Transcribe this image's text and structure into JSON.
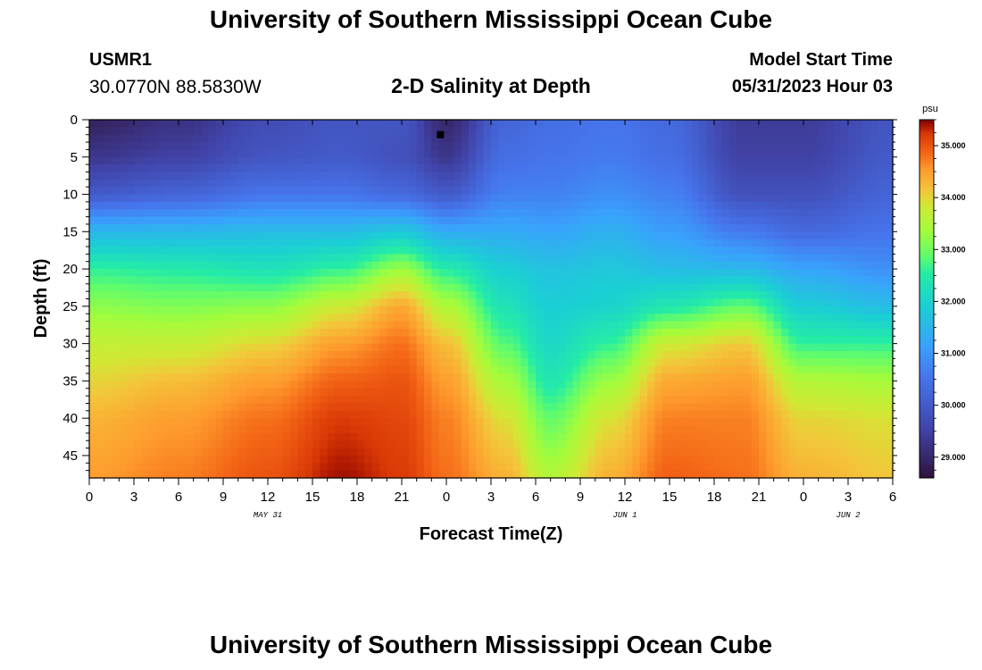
{
  "header": {
    "title": "University of Southern Mississippi Ocean Cube",
    "station": "USMR1",
    "coords": "30.0770N  88.5830W",
    "subtitle": "2-D Salinity at Depth",
    "start_label": "Model Start Time",
    "start_value": "05/31/2023 Hour 03"
  },
  "footer": {
    "title": "University of Southern Mississippi Ocean Cube"
  },
  "chart_data": {
    "type": "heatmap",
    "title": "2-D Salinity at Depth",
    "xlabel": "Forecast Time(Z)",
    "ylabel": "Depth (ft)",
    "x_ticks": [
      "0",
      "3",
      "6",
      "9",
      "12",
      "15",
      "18",
      "21",
      "0",
      "3",
      "6",
      "9",
      "12",
      "15",
      "18",
      "21",
      "0",
      "3",
      "6"
    ],
    "x_range_hours": [
      0,
      54
    ],
    "date_labels": [
      {
        "label": "MAY 31",
        "hour": 12
      },
      {
        "label": "JUN 1",
        "hour": 36
      },
      {
        "label": "JUN 2",
        "hour": 51
      }
    ],
    "y_ticks": [
      "0",
      "5",
      "10",
      "15",
      "20",
      "25",
      "30",
      "35",
      "40",
      "45"
    ],
    "y_range_ft": [
      0,
      48
    ],
    "marker": {
      "hour": 23.6,
      "depth": 2
    },
    "colorbar": {
      "unit": "psu",
      "range": [
        28.6,
        35.5
      ],
      "tick_labels": [
        "35.000",
        "34.000",
        "33.000",
        "32.000",
        "31.000",
        "30.000",
        "29.000"
      ],
      "tick_values": [
        35,
        34,
        33,
        32,
        31,
        30,
        29
      ]
    },
    "field_profiles": [
      {
        "hour": 0,
        "depths": [
          0,
          5,
          10,
          15,
          20,
          25,
          30,
          35,
          40,
          47.5
        ],
        "values": [
          28.9,
          29.3,
          30.0,
          31.5,
          32.6,
          33.2,
          33.7,
          34.0,
          34.3,
          34.5
        ]
      },
      {
        "hour": 6,
        "depths": [
          0,
          5,
          10,
          15,
          20,
          25,
          30,
          35,
          40,
          47.5
        ],
        "values": [
          29.2,
          29.5,
          30.2,
          31.5,
          32.5,
          33.1,
          33.7,
          34.2,
          34.5,
          34.7
        ]
      },
      {
        "hour": 12,
        "depths": [
          0,
          5,
          10,
          15,
          20,
          25,
          30,
          35,
          40,
          47.5
        ],
        "values": [
          29.7,
          29.9,
          30.5,
          31.6,
          32.3,
          33.2,
          34.0,
          34.5,
          34.8,
          35.0
        ]
      },
      {
        "hour": 17,
        "depths": [
          0,
          5,
          10,
          15,
          20,
          25,
          30,
          35,
          40,
          47.5
        ],
        "values": [
          29.9,
          30.0,
          30.5,
          31.6,
          32.6,
          33.8,
          34.5,
          34.9,
          35.2,
          35.4
        ]
      },
      {
        "hour": 21,
        "depths": [
          0,
          5,
          10,
          15,
          20,
          25,
          30,
          35,
          40,
          47.5
        ],
        "values": [
          29.9,
          29.8,
          30.3,
          31.8,
          33.3,
          34.4,
          34.8,
          35.0,
          35.1,
          35.2
        ]
      },
      {
        "hour": 24,
        "depths": [
          0,
          5,
          10,
          15,
          20,
          25,
          30,
          35,
          40,
          47.5
        ],
        "values": [
          29.0,
          29.3,
          30.0,
          31.3,
          32.5,
          33.5,
          34.2,
          34.5,
          34.7,
          34.8
        ]
      },
      {
        "hour": 28,
        "depths": [
          0,
          5,
          10,
          15,
          20,
          25,
          30,
          35,
          40,
          47.5
        ],
        "values": [
          30.2,
          30.4,
          30.7,
          31.3,
          31.9,
          32.3,
          32.8,
          33.4,
          33.9,
          34.3
        ]
      },
      {
        "hour": 31,
        "depths": [
          0,
          5,
          10,
          15,
          20,
          25,
          30,
          35,
          40,
          47.5
        ],
        "values": [
          30.4,
          30.5,
          30.7,
          31.2,
          31.7,
          31.9,
          32.1,
          32.4,
          32.9,
          33.5
        ]
      },
      {
        "hour": 35,
        "depths": [
          0,
          5,
          10,
          15,
          20,
          25,
          30,
          35,
          40,
          47.5
        ],
        "values": [
          30.5,
          30.6,
          30.9,
          31.4,
          31.8,
          32.0,
          32.6,
          33.3,
          33.9,
          34.3
        ]
      },
      {
        "hour": 39,
        "depths": [
          0,
          5,
          10,
          15,
          20,
          25,
          30,
          35,
          40,
          47.5
        ],
        "values": [
          30.3,
          30.4,
          30.7,
          31.1,
          31.6,
          32.4,
          33.8,
          34.4,
          34.7,
          34.9
        ]
      },
      {
        "hour": 44,
        "depths": [
          0,
          5,
          10,
          15,
          20,
          25,
          30,
          35,
          40,
          47.5
        ],
        "values": [
          29.4,
          29.5,
          29.8,
          30.6,
          31.5,
          32.9,
          34.1,
          34.5,
          34.7,
          34.8
        ]
      },
      {
        "hour": 48,
        "depths": [
          0,
          5,
          10,
          15,
          20,
          25,
          30,
          35,
          40,
          47.5
        ],
        "values": [
          29.4,
          29.5,
          29.8,
          30.3,
          31.2,
          31.9,
          32.6,
          33.5,
          34.0,
          34.3
        ]
      },
      {
        "hour": 54,
        "depths": [
          0,
          5,
          10,
          15,
          20,
          25,
          30,
          35,
          40,
          47.5
        ],
        "values": [
          29.9,
          30.0,
          30.2,
          30.5,
          30.9,
          31.6,
          32.6,
          33.4,
          33.9,
          34.1
        ]
      }
    ]
  }
}
